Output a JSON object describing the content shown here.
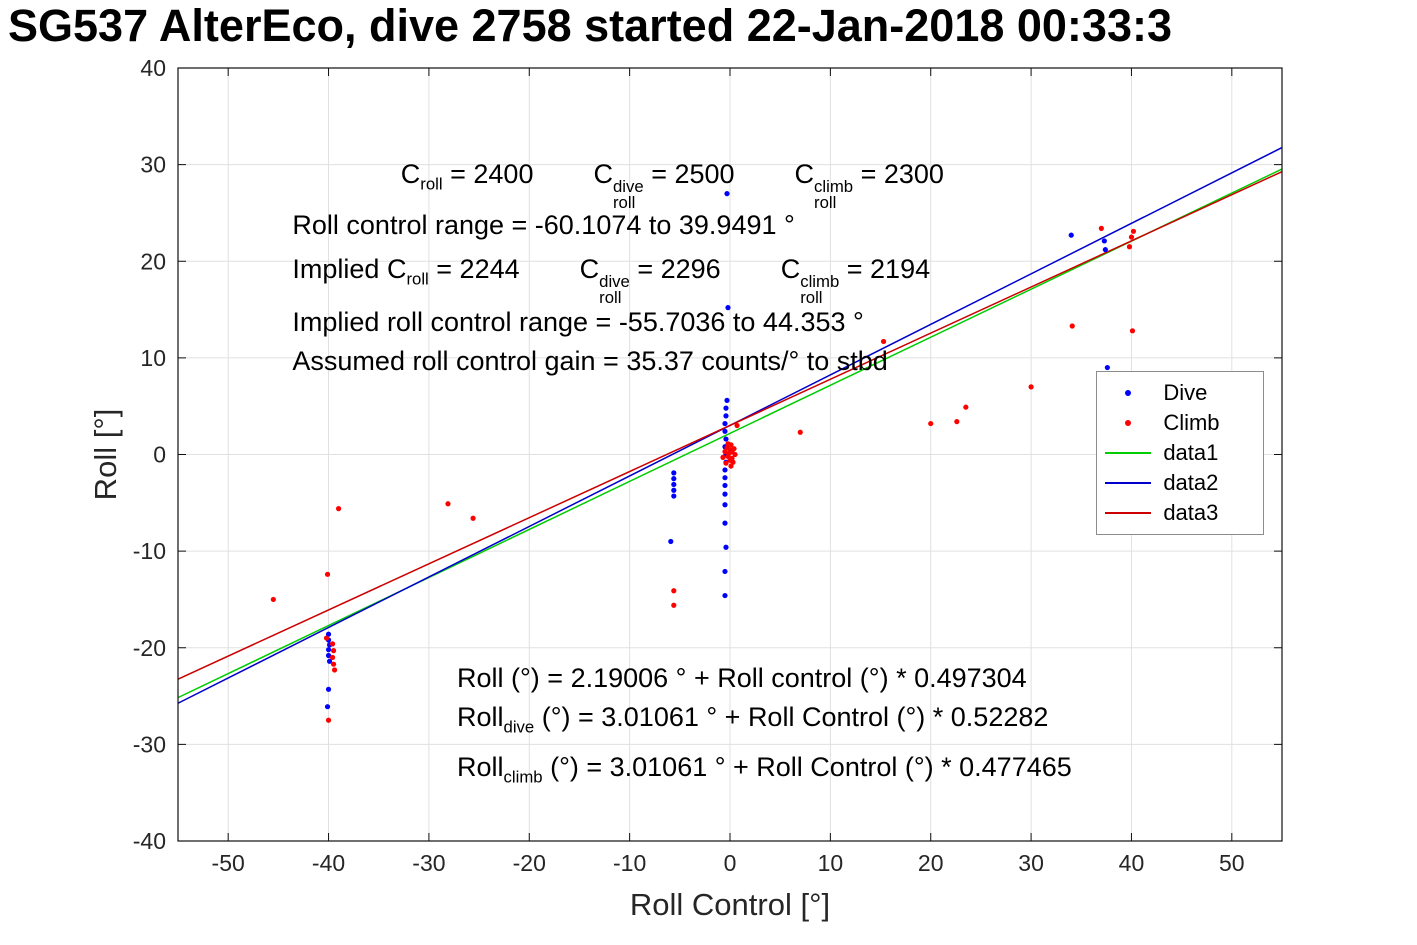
{
  "chart_data": {
    "type": "scatter",
    "title": "SG537 AlterEco, dive 2758 started 22-Jan-2018 00:33:3",
    "xlabel": "Roll Control [°]",
    "ylabel": "Roll [°]",
    "xlim": [
      -55,
      55
    ],
    "ylim": [
      -40,
      40
    ],
    "xticks": [
      -50,
      -40,
      -30,
      -20,
      -10,
      0,
      10,
      20,
      30,
      40,
      50
    ],
    "yticks": [
      -40,
      -30,
      -20,
      -10,
      0,
      10,
      20,
      30,
      40
    ],
    "grid": true,
    "grid_color": "#e0e0e0",
    "axis_color": "#0f0f0f",
    "tick_label_color": "#262626",
    "series": [
      {
        "name": "Dive",
        "kind": "scatter",
        "marker": "dot",
        "color": "#0000ff",
        "points": [
          [
            -40,
            -18.6
          ],
          [
            -40,
            -19.2
          ],
          [
            -39.9,
            -19.7
          ],
          [
            -40,
            -20.2
          ],
          [
            -40,
            -20.8
          ],
          [
            -39.9,
            -21.4
          ],
          [
            -40,
            -24.3
          ],
          [
            -40.1,
            -26.1
          ],
          [
            -5.6,
            -1.9
          ],
          [
            -5.6,
            -2.5
          ],
          [
            -5.6,
            -3.1
          ],
          [
            -5.6,
            -3.7
          ],
          [
            -5.6,
            -4.3
          ],
          [
            -5.9,
            -9.0
          ],
          [
            -0.5,
            -14.6
          ],
          [
            -0.5,
            -12.1
          ],
          [
            -0.4,
            -9.6
          ],
          [
            -0.5,
            -7.1
          ],
          [
            -0.5,
            -5.2
          ],
          [
            -0.5,
            -4.1
          ],
          [
            -0.5,
            -3.2
          ],
          [
            -0.5,
            -2.4
          ],
          [
            -0.5,
            -1.6
          ],
          [
            -0.4,
            -0.8
          ],
          [
            -0.4,
            0.0
          ],
          [
            -0.5,
            0.8
          ],
          [
            -0.4,
            1.6
          ],
          [
            -0.5,
            2.4
          ],
          [
            -0.5,
            3.2
          ],
          [
            -0.4,
            4.0
          ],
          [
            -0.4,
            4.8
          ],
          [
            -0.3,
            5.6
          ],
          [
            -0.2,
            15.2
          ],
          [
            -0.3,
            27.0
          ],
          [
            34.0,
            22.7
          ],
          [
            37.3,
            22.1
          ],
          [
            37.4,
            21.2
          ],
          [
            37.6,
            9.0
          ]
        ]
      },
      {
        "name": "Climb",
        "kind": "scatter",
        "marker": "dot",
        "color": "#ff0000",
        "points": [
          [
            -45.5,
            -15.0
          ],
          [
            -40.2,
            -19.0
          ],
          [
            -39.6,
            -19.6
          ],
          [
            -39.5,
            -20.3
          ],
          [
            -39.6,
            -21.0
          ],
          [
            -39.5,
            -21.7
          ],
          [
            -39.4,
            -22.3
          ],
          [
            -40.0,
            -27.5
          ],
          [
            -40.1,
            -12.4
          ],
          [
            -39.0,
            -5.6
          ],
          [
            -28.1,
            -5.1
          ],
          [
            -25.6,
            -6.6
          ],
          [
            -5.6,
            -14.1
          ],
          [
            -5.6,
            -15.6
          ],
          [
            -0.7,
            -0.3
          ],
          [
            -0.5,
            0.3
          ],
          [
            -0.4,
            -0.9
          ],
          [
            -0.3,
            0.7
          ],
          [
            -0.2,
            -0.2
          ],
          [
            -0.2,
            1.1
          ],
          [
            -0.1,
            0.1
          ],
          [
            0.0,
            -0.6
          ],
          [
            0.0,
            0.5
          ],
          [
            0.1,
            -1.2
          ],
          [
            0.1,
            1.0
          ],
          [
            0.2,
            -0.4
          ],
          [
            0.2,
            0.3
          ],
          [
            0.3,
            -0.8
          ],
          [
            0.4,
            0.6
          ],
          [
            0.5,
            0.0
          ],
          [
            0.7,
            3.0
          ],
          [
            7.0,
            2.3
          ],
          [
            15.3,
            11.7
          ],
          [
            20.0,
            3.2
          ],
          [
            22.6,
            3.4
          ],
          [
            23.5,
            4.9
          ],
          [
            30.0,
            7.0
          ],
          [
            34.1,
            13.3
          ],
          [
            37.0,
            23.4
          ],
          [
            39.8,
            21.5
          ],
          [
            40.0,
            22.5
          ],
          [
            40.2,
            23.1
          ],
          [
            40.1,
            12.8
          ]
        ]
      },
      {
        "name": "data1",
        "kind": "line",
        "color": "#00cc00",
        "intercept": 2.19006,
        "slope": 0.497304,
        "x_range": [
          -55,
          55
        ]
      },
      {
        "name": "data2",
        "kind": "line",
        "color": "#0000cd",
        "intercept": 3.01061,
        "slope": 0.52282,
        "x_range": [
          -55,
          55
        ]
      },
      {
        "name": "data3",
        "kind": "line",
        "color": "#cc0000",
        "intercept": 3.01061,
        "slope": 0.477465,
        "x_range": [
          -55,
          55
        ]
      }
    ],
    "legend": {
      "position": "right-middle",
      "anchor": {
        "x": 36.5,
        "y": 8.6
      },
      "entries": [
        {
          "label": "Dive",
          "marker": "dot",
          "color": "#0000ff"
        },
        {
          "label": "Climb",
          "marker": "dot",
          "color": "#ff0000"
        },
        {
          "label": "data1",
          "marker": "line",
          "color": "#00cc00"
        },
        {
          "label": "data2",
          "marker": "line",
          "color": "#0000cd"
        },
        {
          "label": "data3",
          "marker": "line",
          "color": "#cc0000"
        }
      ]
    },
    "annotations": [
      {
        "x": -32.8,
        "y": 30.6,
        "segments": [
          {
            "t": "C",
            "sub": "roll"
          },
          {
            "t": " = 2400"
          },
          {
            "t": "        "
          },
          {
            "t": "C",
            "sub": "roll",
            "sup": "dive"
          },
          {
            "t": " = 2500"
          },
          {
            "t": "        "
          },
          {
            "t": "C",
            "sub": "roll",
            "sup": "climb"
          },
          {
            "t": " = 2300"
          }
        ]
      },
      {
        "x": -43.6,
        "y": 25.3,
        "segments": [
          {
            "t": "Roll control range = -60.1074 to 39.9491 °"
          }
        ]
      },
      {
        "x": -43.6,
        "y": 20.8,
        "segments": [
          {
            "t": "Implied C",
            "sub": "roll"
          },
          {
            "t": " = 2244"
          },
          {
            "t": "        "
          },
          {
            "t": "C",
            "sub": "roll",
            "sup": "dive"
          },
          {
            "t": " = 2296"
          },
          {
            "t": "        "
          },
          {
            "t": "C",
            "sub": "roll",
            "sup": "climb"
          },
          {
            "t": " = 2194"
          }
        ]
      },
      {
        "x": -43.6,
        "y": 15.3,
        "segments": [
          {
            "t": "Implied roll control range = -55.7036 to 44.353 °"
          }
        ]
      },
      {
        "x": -43.6,
        "y": 11.2,
        "segments": [
          {
            "t": "Assumed roll control gain = 35.37 counts/° to stbd"
          }
        ]
      },
      {
        "x": -27.2,
        "y": -21.6,
        "segments": [
          {
            "t": "Roll (°) = 2.19006 ° + Roll control (°) * 0.497304"
          }
        ]
      },
      {
        "x": -27.2,
        "y": -25.6,
        "segments": [
          {
            "t": "Roll",
            "sub": "dive"
          },
          {
            "t": " (°) = 3.01061 ° + Roll Control (°) * 0.52282"
          }
        ]
      },
      {
        "x": -27.2,
        "y": -30.8,
        "segments": [
          {
            "t": "Roll",
            "sub": "climb"
          },
          {
            "t": " (°) = 3.01061 ° + Roll Control (°) * 0.477465"
          }
        ]
      }
    ]
  }
}
